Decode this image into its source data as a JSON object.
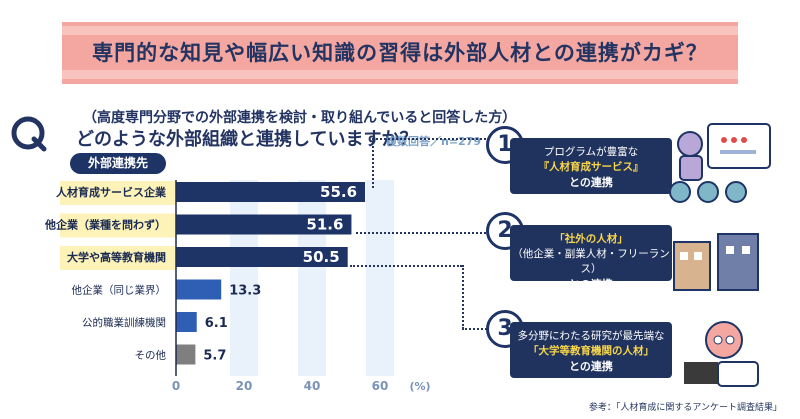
{
  "banner": {
    "title": "専門的な知見や幅広い知識の習得は外部人材との連携がカギ？"
  },
  "question": {
    "qualifier": "（高度専門分野での外部連携を検討・取り組んでいると回答した方）",
    "text": "どのような外部組織と連携していますか？",
    "note": "複数回答／n=279"
  },
  "category_header": "外部連携先",
  "chart_data": {
    "type": "bar",
    "orientation": "horizontal",
    "categories": [
      "人材育成サービス企業",
      "他企業（業種を問わず）",
      "大学や高等教育機関",
      "他企業（同じ業界）",
      "公的職業訓練機関",
      "その他"
    ],
    "values": [
      55.6,
      51.6,
      50.5,
      13.3,
      6.1,
      5.7
    ],
    "xlim": [
      0,
      60
    ],
    "xticks": [
      "0",
      "20",
      "40",
      "60"
    ],
    "xunit": "(%)",
    "colors": [
      "#1f3466",
      "#1f3466",
      "#1f3466",
      "#2f5fb5",
      "#2f5fb5",
      "#7f7f7f"
    ]
  },
  "cards": [
    {
      "num": "1",
      "line1": "プログラムが豊富な",
      "line2": "『人材育成サービス』",
      "line3": "との連携"
    },
    {
      "num": "2",
      "line1": "「社外の人材」",
      "line2": "（他企業・副業人材・フリーランス）",
      "line3": "との連携"
    },
    {
      "num": "3",
      "line1": "多分野にわたる研究が最先端な",
      "line2": "「大学等教育機関の人材」",
      "line3": "との連携"
    }
  ],
  "source": "参考：「人材育成に関するアンケート調査結果」"
}
